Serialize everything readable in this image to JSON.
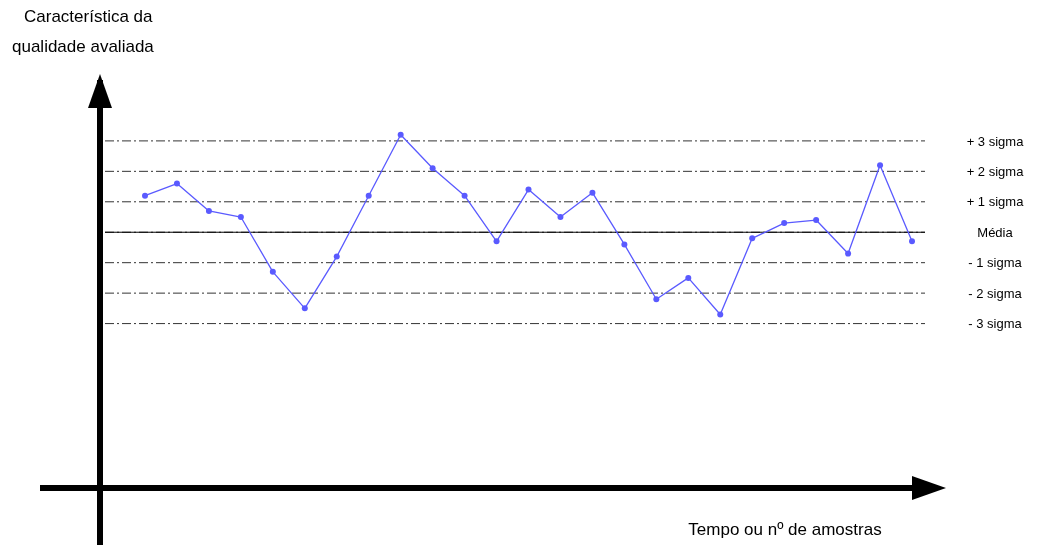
{
  "chart_data": {
    "type": "line",
    "ylabel": "Característica da qualidade avaliada",
    "xlabel": "Tempo ou nº de amostras",
    "categories": [
      null,
      null,
      null,
      null,
      null,
      null,
      null,
      null,
      null,
      null,
      null,
      null,
      null,
      null,
      null,
      null,
      null,
      null,
      null,
      null,
      null,
      null,
      null,
      null,
      null
    ],
    "series": [
      {
        "color": "#5a5aff",
        "values": [
          1.2,
          1.6,
          0.7,
          0.5,
          -1.3,
          -2.5,
          -0.8,
          1.2,
          3.2,
          2.1,
          1.2,
          -0.3,
          1.4,
          0.5,
          1.3,
          -0.4,
          -2.2,
          -1.5,
          -2.7,
          -0.2,
          0.3,
          0.4,
          -0.7,
          2.2,
          -0.3
        ]
      }
    ],
    "marker": "circle",
    "line_style": "solid",
    "ylim": [
      -8.4,
      5
    ],
    "yticks": [
      {
        "value": 3,
        "label": "+ 3 sigma"
      },
      {
        "value": 2,
        "label": "+ 2 sigma"
      },
      {
        "value": 1,
        "label": "+ 1 sigma"
      },
      {
        "value": 0,
        "label": "Média"
      },
      {
        "value": -1,
        "label": "- 1 sigma"
      },
      {
        "value": -2,
        "label": "- 2 sigma"
      },
      {
        "value": -3,
        "label": "- 3 sigma"
      }
    ],
    "grid": "y",
    "ref_lines": [
      {
        "axis": "y",
        "value": 0,
        "line_style": "solid",
        "color": "#000000"
      }
    ]
  }
}
